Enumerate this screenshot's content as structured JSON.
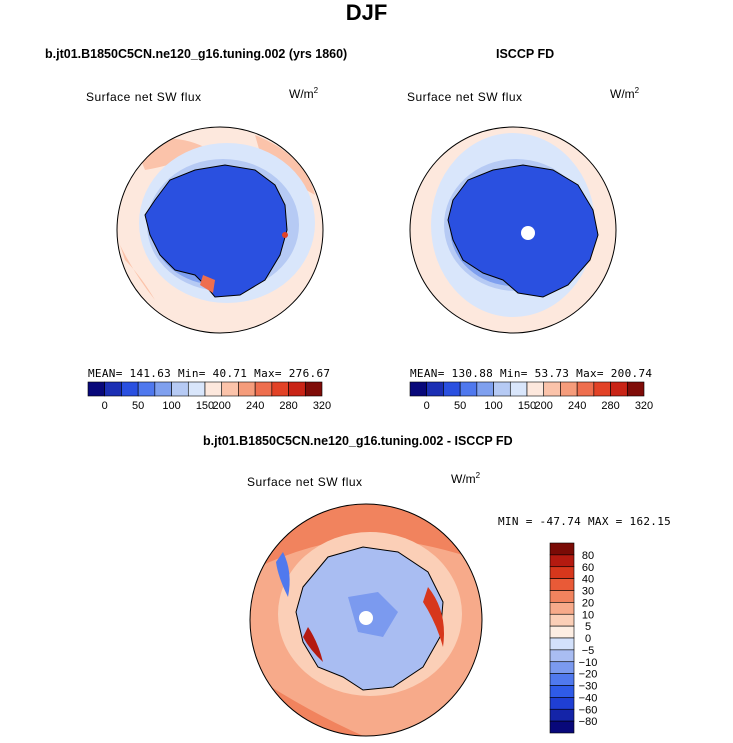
{
  "figure": {
    "title": "DJF"
  },
  "colors": {
    "abs_scale": [
      "#08087a",
      "#1b2fb4",
      "#2a50e0",
      "#4f78ee",
      "#7fa0ef",
      "#b6caf4",
      "#d9e6fb",
      "#fde8dd",
      "#fbc3aa",
      "#f59c7b",
      "#ee6e4e",
      "#e24226",
      "#c92416",
      "#7f0c08"
    ],
    "diff_scale": [
      "#08087a",
      "#1424a8",
      "#1f3fd4",
      "#2f5be8",
      "#5079ee",
      "#7b9aef",
      "#a9bdf2",
      "#d3e1fb",
      "#fdeee3",
      "#fbcfb7",
      "#f7aa8a",
      "#f1835e",
      "#e95a37",
      "#d7371c",
      "#b41a10",
      "#7a0b06"
    ],
    "land_white": "#ffffff",
    "coastline": "#000000"
  },
  "chart_data": [
    {
      "type": "polar-contour-map",
      "title": "b.jt01.B1850C5CN.ne120_g16.tuning.002 (yrs 1860)",
      "variable": "Surface net SW flux",
      "units": "W/m",
      "units_exp": "2",
      "stats": {
        "mean": "141.63",
        "min": "40.71",
        "max": "276.67"
      },
      "stats_text": "MEAN= 141.63  Min=  40.71  Max= 276.67",
      "colorbar": {
        "levels": [
          0,
          25,
          50,
          75,
          100,
          125,
          150,
          175,
          200,
          220,
          240,
          260,
          280,
          300,
          320
        ],
        "tick_labels": [
          "0",
          "50",
          "100",
          "150",
          "200",
          "240",
          "280",
          "320"
        ]
      }
    },
    {
      "type": "polar-contour-map",
      "title": "ISCCP FD",
      "variable": "Surface net SW flux",
      "units": "W/m",
      "units_exp": "2",
      "stats": {
        "mean": "130.88",
        "min": "53.73",
        "max": "200.74"
      },
      "stats_text": "MEAN= 130.88  Min=  53.73  Max= 200.74",
      "colorbar": {
        "levels": [
          0,
          25,
          50,
          75,
          100,
          125,
          150,
          175,
          200,
          220,
          240,
          260,
          280,
          300,
          320
        ],
        "tick_labels": [
          "0",
          "50",
          "100",
          "150",
          "200",
          "240",
          "280",
          "320"
        ]
      }
    },
    {
      "type": "polar-contour-map",
      "title": "b.jt01.B1850C5CN.ne120_g16.tuning.002 - ISCCP FD",
      "variable": "Surface net SW flux",
      "units": "W/m",
      "units_exp": "2",
      "stats": {
        "min": "-47.74",
        "max": "162.15"
      },
      "stats_text": "MIN = -47.74  MAX = 162.15",
      "colorbar": {
        "levels": [
          -100,
          -80,
          -60,
          -40,
          -30,
          -20,
          -10,
          -5,
          0,
          5,
          10,
          20,
          30,
          40,
          60,
          80,
          100
        ],
        "tick_labels": [
          "80",
          "60",
          "40",
          "30",
          "20",
          "10",
          "5",
          "0",
          "−5",
          "−10",
          "−20",
          "−30",
          "−40",
          "−60",
          "−80"
        ]
      }
    }
  ]
}
